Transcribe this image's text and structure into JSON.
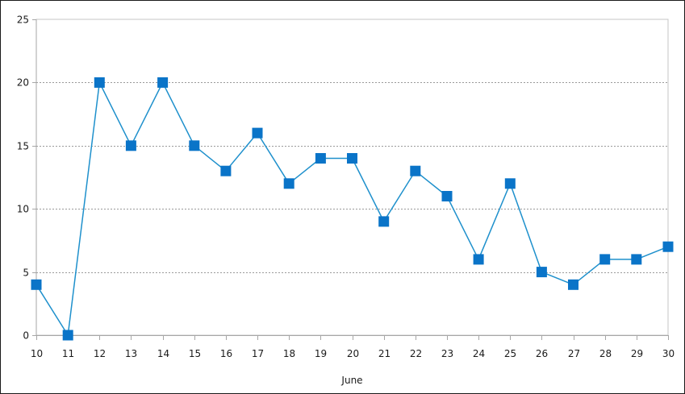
{
  "chart_data": {
    "type": "line",
    "title": "",
    "xlabel": "June",
    "ylabel": "",
    "x": [
      10,
      11,
      12,
      13,
      14,
      15,
      16,
      17,
      18,
      19,
      20,
      21,
      22,
      23,
      24,
      25,
      26,
      27,
      28,
      29,
      30
    ],
    "series": [
      {
        "values": [
          4,
          0,
          20,
          15,
          20,
          15,
          13,
          16,
          12,
          14,
          14,
          9,
          13,
          11,
          6,
          12,
          5,
          4,
          6,
          6,
          7
        ]
      }
    ],
    "xlim": [
      10,
      30
    ],
    "ylim": [
      0,
      25
    ],
    "yticks": [
      0,
      5,
      10,
      15,
      20,
      25
    ],
    "grid": "horizontal-dashed",
    "legend": "none",
    "colors": {
      "line": "#1E90CC",
      "marker": "#0A74C8",
      "grid": "#9a9a9a",
      "axis": "#a6a6a6",
      "plot_border": "#c4c4c4"
    }
  }
}
